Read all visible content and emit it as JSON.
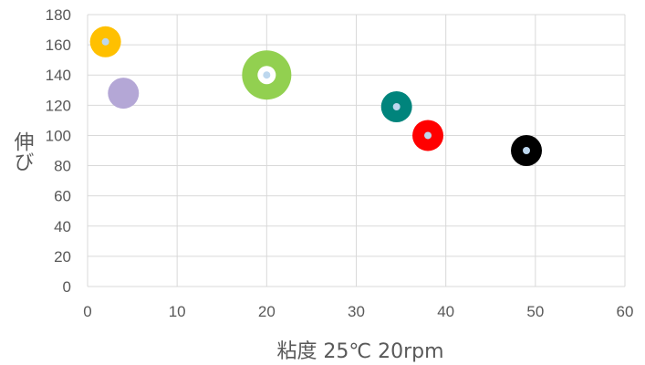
{
  "chart_data": {
    "type": "scatter",
    "xlabel": "粘度 25℃ 20rpm",
    "ylabel": "伸び",
    "xlim": [
      0,
      60
    ],
    "ylim": [
      0,
      180
    ],
    "x_ticks": [
      "0",
      "10",
      "20",
      "30",
      "40",
      "50",
      "60"
    ],
    "y_ticks": [
      "0",
      "20",
      "40",
      "60",
      "80",
      "100",
      "120",
      "140",
      "160",
      "180"
    ],
    "grid": true,
    "points": [
      {
        "x": 2,
        "y": 162,
        "color": "#ffc000",
        "center": "#bdd7ee",
        "size": "medium"
      },
      {
        "x": 4,
        "y": 128,
        "color": "#b4a7d6",
        "center": null,
        "size": "medium"
      },
      {
        "x": 20,
        "y": 140,
        "color": "#92d050",
        "center": "#bdd7ee",
        "size": "large",
        "ring": true
      },
      {
        "x": 34.5,
        "y": 119,
        "color": "#00847c",
        "center": "#bdd7ee",
        "size": "medium"
      },
      {
        "x": 38,
        "y": 100,
        "color": "#ff0000",
        "center": "#bdd7ee",
        "size": "medium"
      },
      {
        "x": 49,
        "y": 90,
        "color": "#000000",
        "center": "#bdd7ee",
        "size": "medium"
      }
    ]
  }
}
